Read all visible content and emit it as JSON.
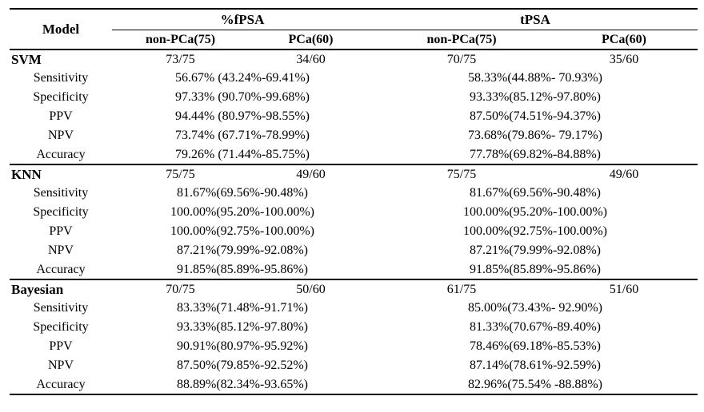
{
  "table": {
    "col1_header": "Model",
    "groups": [
      {
        "label": "%fPSA",
        "subcols": [
          "non-PCa(75)",
          "PCa(60)"
        ]
      },
      {
        "label": "tPSA",
        "subcols": [
          "non-PCa(75)",
          "PCa(60)"
        ]
      }
    ],
    "sections": [
      {
        "model": "SVM",
        "counts": [
          "73/75",
          "34/60",
          "70/75",
          "35/60"
        ],
        "metrics": [
          {
            "label": "Sensitivity",
            "fpsa": "56.67% (43.24%-69.41%)",
            "tpsa": "58.33%(44.88%- 70.93%)"
          },
          {
            "label": "Specificity",
            "fpsa": "97.33% (90.70%-99.68%)",
            "tpsa": "93.33%(85.12%-97.80%)"
          },
          {
            "label": "PPV",
            "fpsa": "94.44% (80.97%-98.55%)",
            "tpsa": "87.50%(74.51%-94.37%)"
          },
          {
            "label": "NPV",
            "fpsa": "73.74% (67.71%-78.99%)",
            "tpsa": "73.68%(79.86%- 79.17%)"
          },
          {
            "label": "Accuracy",
            "fpsa": "79.26% (71.44%-85.75%)",
            "tpsa": "77.78%(69.82%-84.88%)"
          }
        ]
      },
      {
        "model": "KNN",
        "counts": [
          "75/75",
          "49/60",
          "75/75",
          "49/60"
        ],
        "metrics": [
          {
            "label": "Sensitivity",
            "fpsa": "81.67%(69.56%-90.48%)",
            "tpsa": "81.67%(69.56%-90.48%)"
          },
          {
            "label": "Specificity",
            "fpsa": "100.00%(95.20%-100.00%)",
            "tpsa": "100.00%(95.20%-100.00%)"
          },
          {
            "label": "PPV",
            "fpsa": "100.00%(92.75%-100.00%)",
            "tpsa": "100.00%(92.75%-100.00%)"
          },
          {
            "label": "NPV",
            "fpsa": "87.21%(79.99%-92.08%)",
            "tpsa": "87.21%(79.99%-92.08%)"
          },
          {
            "label": "Accuracy",
            "fpsa": "91.85%(85.89%-95.86%)",
            "tpsa": "91.85%(85.89%-95.86%)"
          }
        ]
      },
      {
        "model": "Bayesian",
        "counts": [
          "70/75",
          "50/60",
          "61/75",
          "51/60"
        ],
        "metrics": [
          {
            "label": "Sensitivity",
            "fpsa": "83.33%(71.48%-91.71%)",
            "tpsa": "85.00%(73.43%- 92.90%)"
          },
          {
            "label": "Specificity",
            "fpsa": "93.33%(85.12%-97.80%)",
            "tpsa": "81.33%(70.67%-89.40%)"
          },
          {
            "label": "PPV",
            "fpsa": "90.91%(80.97%-95.92%)",
            "tpsa": "78.46%(69.18%-85.53%)"
          },
          {
            "label": "NPV",
            "fpsa": "87.50%(79.85%-92.52%)",
            "tpsa": "87.14%(78.61%-92.59%)"
          },
          {
            "label": "Accuracy",
            "fpsa": "88.89%(82.34%-93.65%)",
            "tpsa": "82.96%(75.54% -88.88%)"
          }
        ]
      }
    ]
  }
}
